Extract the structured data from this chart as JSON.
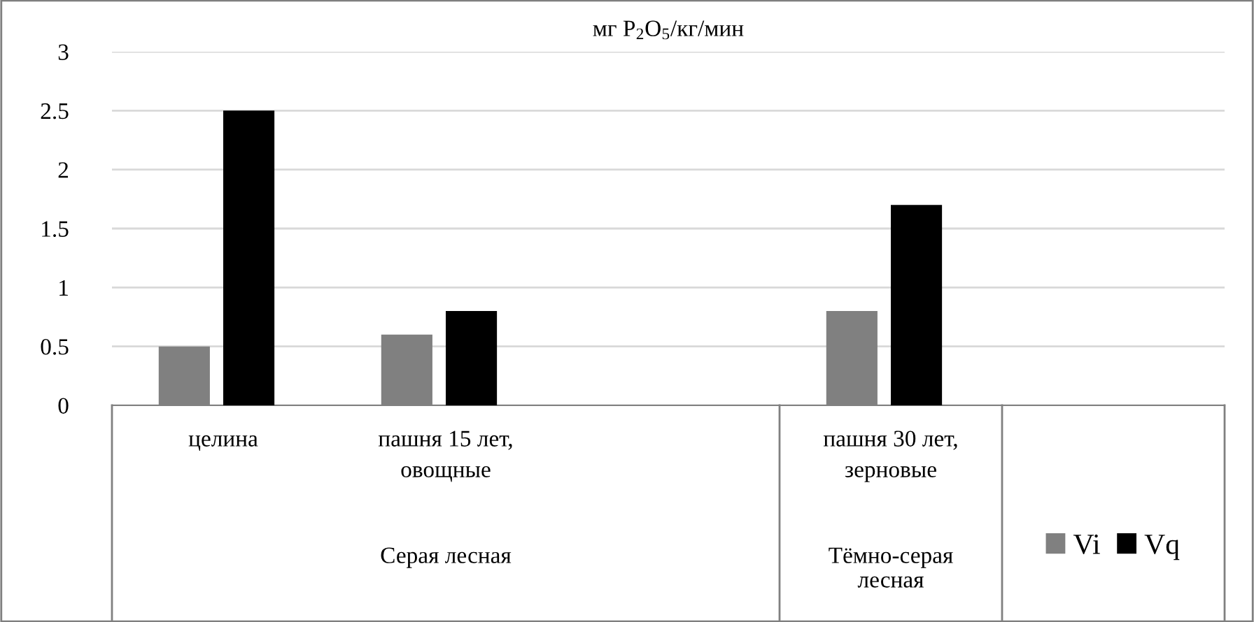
{
  "chart_data": {
    "type": "bar",
    "title": "мг P$_{2}$O$_{5}$/кг/мин",
    "categories": [
      "целина",
      "пашня 15 лет,\nовощные",
      null,
      "пашня 30 лет,\nзерновые",
      null
    ],
    "series": [
      {
        "name": "Vi",
        "color": "#808080",
        "values": [
          0.5,
          0.6,
          null,
          0.8,
          null
        ]
      },
      {
        "name": "Vq",
        "color": "#000000",
        "values": [
          2.5,
          0.8,
          null,
          1.7,
          null
        ]
      }
    ],
    "annotations": [
      "Серая лесная",
      "Тёмно-серая\nлесная"
    ],
    "ylim": [
      0,
      3
    ],
    "yticks": [
      0,
      0.5,
      1,
      1.5,
      2,
      2.5,
      3
    ],
    "grid": "y",
    "legend": "bottom right"
  }
}
